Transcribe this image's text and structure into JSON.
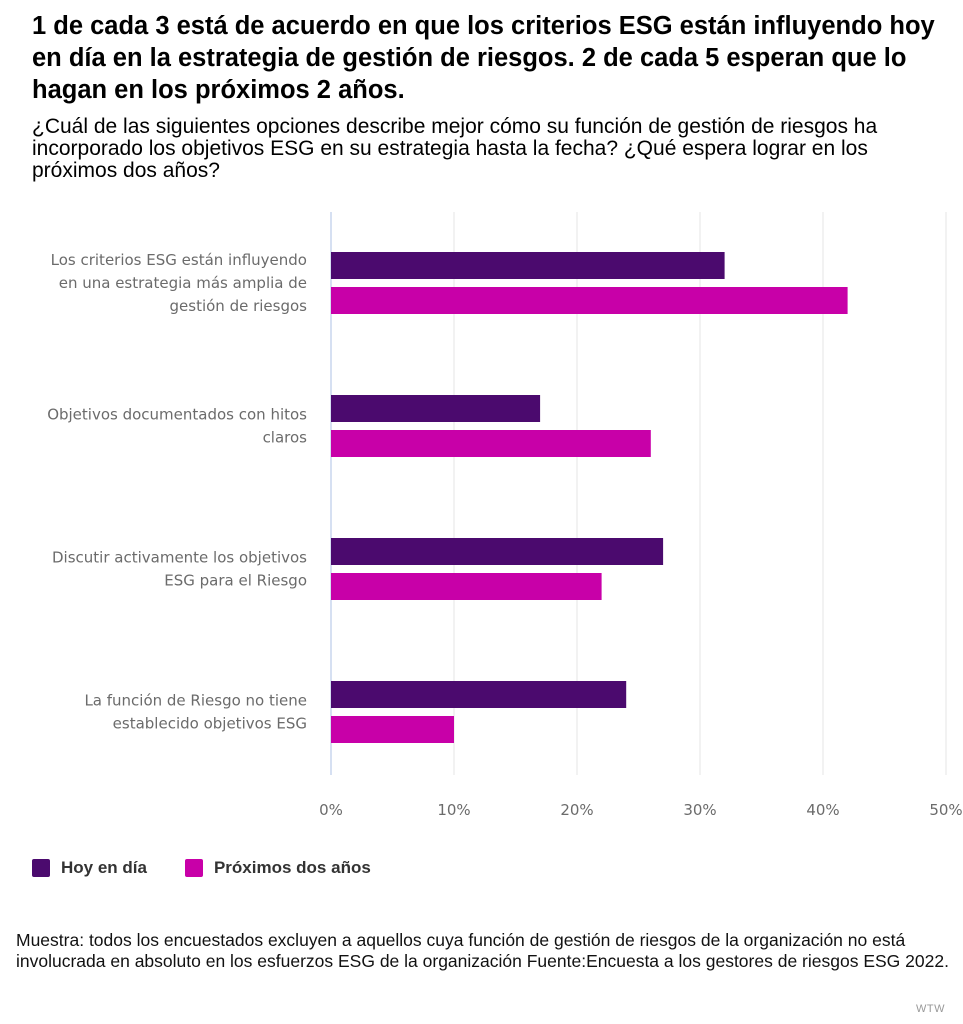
{
  "title": "1 de cada 3 está de acuerdo en que los criterios ESG están influyendo hoy en día en la estrategia de gestión de riesgos. 2 de cada 5 esperan que lo hagan en los próximos 2 años.",
  "subtitle": "¿Cuál de las siguientes opciones describe mejor cómo su función de gestión de riesgos ha incorporado los objetivos ESG en su estrategia hasta la fecha? ¿Qué espera lograr en los próximos dos años?",
  "note": "Muestra: todos los encuestados excluyen a aquellos cuya función de gestión de riesgos de la organización no está involucrada en absoluto en los esfuerzos ESG de la organización Fuente:Encuesta a los gestores de riesgos ESG 2022.",
  "credit": "WTW",
  "colors": {
    "today": "#4b0a6e",
    "next": "#c800a8",
    "grid": "#e4e4e4",
    "axis": "#c9d6ee",
    "label": "#6b6b6b"
  },
  "chart_data": {
    "type": "bar",
    "orientation": "horizontal",
    "categories": [
      [
        "Los criterios ESG están influyendo",
        "en una estrategia más amplia de",
        "gestión de riesgos"
      ],
      [
        "Objetivos documentados con hitos",
        "claros"
      ],
      [
        "Discutir activamente los objetivos",
        "ESG para el Riesgo"
      ],
      [
        "La función de Riesgo no tiene",
        "establecido objetivos ESG"
      ]
    ],
    "series": [
      {
        "name": "Hoy en día",
        "values": [
          32,
          17,
          27,
          24
        ]
      },
      {
        "name": "Próximos dos años",
        "values": [
          42,
          26,
          22,
          10
        ]
      }
    ],
    "xlim": [
      0,
      50
    ],
    "x_ticks": [
      "0%",
      "10%",
      "20%",
      "30%",
      "40%",
      "50%"
    ],
    "x_tick_values": [
      0,
      10,
      20,
      30,
      40,
      50
    ],
    "grid": true,
    "legend_position": "bottom-left"
  }
}
